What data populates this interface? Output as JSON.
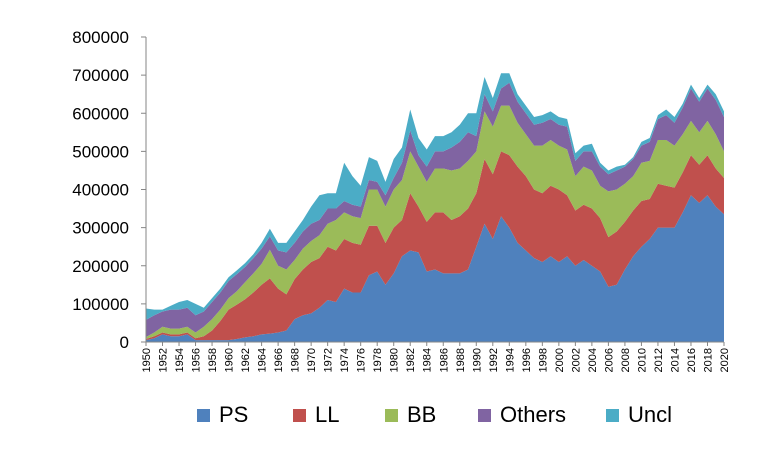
{
  "chart_data": {
    "type": "area",
    "stacked": true,
    "title": "",
    "xlabel": "",
    "ylabel": "",
    "ylim": [
      0,
      800000
    ],
    "yticks": [
      "0",
      "100000",
      "200000",
      "300000",
      "400000",
      "500000",
      "600000",
      "700000",
      "800000"
    ],
    "grid": false,
    "legend_position": "bottom",
    "x": [
      1950,
      1951,
      1952,
      1953,
      1954,
      1955,
      1956,
      1957,
      1958,
      1959,
      1960,
      1961,
      1962,
      1963,
      1964,
      1965,
      1966,
      1967,
      1968,
      1969,
      1970,
      1971,
      1972,
      1973,
      1974,
      1975,
      1976,
      1977,
      1978,
      1979,
      1980,
      1981,
      1982,
      1983,
      1984,
      1985,
      1986,
      1987,
      1988,
      1989,
      1990,
      1991,
      1992,
      1993,
      1994,
      1995,
      1996,
      1997,
      1998,
      1999,
      2000,
      2001,
      2002,
      2003,
      2004,
      2005,
      2006,
      2007,
      2008,
      2009,
      2010,
      2011,
      2012,
      2013,
      2014,
      2015,
      2016,
      2017,
      2018,
      2019,
      2020
    ],
    "xticks": [
      "1950",
      "1952",
      "1954",
      "1956",
      "1958",
      "1960",
      "1962",
      "1964",
      "1966",
      "1968",
      "1970",
      "1972",
      "1974",
      "1976",
      "1978",
      "1980",
      "1982",
      "1984",
      "1986",
      "1988",
      "1990",
      "1992",
      "1994",
      "1996",
      "1998",
      "2000",
      "2002",
      "2004",
      "2006",
      "2008",
      "2010",
      "2012",
      "2014",
      "2016",
      "2018",
      "2020"
    ],
    "series": [
      {
        "name": "PS",
        "color": "#4F81BD",
        "values": [
          5000,
          10000,
          20000,
          15000,
          15000,
          20000,
          5000,
          5000,
          5000,
          5000,
          5000,
          8000,
          12000,
          15000,
          20000,
          22000,
          25000,
          30000,
          60000,
          70000,
          75000,
          90000,
          110000,
          105000,
          140000,
          130000,
          130000,
          175000,
          185000,
          150000,
          180000,
          225000,
          240000,
          235000,
          185000,
          190000,
          180000,
          180000,
          180000,
          190000,
          250000,
          310000,
          270000,
          330000,
          300000,
          260000,
          240000,
          220000,
          210000,
          225000,
          210000,
          225000,
          200000,
          215000,
          200000,
          185000,
          145000,
          150000,
          190000,
          225000,
          250000,
          270000,
          300000,
          300000,
          300000,
          340000,
          385000,
          365000,
          385000,
          355000,
          335000
        ]
      },
      {
        "name": "LL",
        "color": "#C0504D",
        "values": [
          3000,
          5000,
          5000,
          5000,
          5000,
          5000,
          5000,
          10000,
          25000,
          50000,
          80000,
          90000,
          100000,
          115000,
          130000,
          145000,
          115000,
          95000,
          105000,
          120000,
          135000,
          130000,
          140000,
          135000,
          130000,
          130000,
          125000,
          130000,
          120000,
          110000,
          120000,
          95000,
          150000,
          120000,
          130000,
          150000,
          160000,
          140000,
          150000,
          160000,
          140000,
          170000,
          170000,
          170000,
          190000,
          200000,
          195000,
          180000,
          180000,
          185000,
          190000,
          160000,
          145000,
          145000,
          150000,
          140000,
          130000,
          140000,
          125000,
          120000,
          120000,
          105000,
          115000,
          110000,
          105000,
          105000,
          105000,
          100000,
          105000,
          100000,
          95000
        ]
      },
      {
        "name": "BB",
        "color": "#9BBB59",
        "values": [
          5000,
          10000,
          15000,
          15000,
          15000,
          15000,
          15000,
          25000,
          30000,
          30000,
          30000,
          35000,
          45000,
          50000,
          55000,
          75000,
          60000,
          65000,
          50000,
          55000,
          55000,
          60000,
          60000,
          80000,
          70000,
          70000,
          70000,
          95000,
          95000,
          95000,
          100000,
          105000,
          110000,
          105000,
          105000,
          115000,
          115000,
          130000,
          125000,
          125000,
          110000,
          125000,
          125000,
          120000,
          130000,
          115000,
          110000,
          115000,
          125000,
          120000,
          115000,
          120000,
          90000,
          100000,
          100000,
          85000,
          120000,
          110000,
          100000,
          90000,
          100000,
          100000,
          115000,
          120000,
          110000,
          100000,
          90000,
          85000,
          90000,
          90000,
          70000
        ]
      },
      {
        "name": "Others",
        "color": "#8064A2",
        "values": [
          45000,
          45000,
          40000,
          50000,
          50000,
          50000,
          45000,
          40000,
          45000,
          45000,
          45000,
          45000,
          40000,
          40000,
          40000,
          35000,
          40000,
          45000,
          45000,
          45000,
          45000,
          40000,
          40000,
          30000,
          30000,
          30000,
          30000,
          25000,
          20000,
          30000,
          30000,
          45000,
          55000,
          30000,
          40000,
          45000,
          45000,
          60000,
          70000,
          75000,
          40000,
          45000,
          40000,
          45000,
          60000,
          55000,
          55000,
          55000,
          60000,
          55000,
          55000,
          60000,
          40000,
          40000,
          50000,
          50000,
          45000,
          50000,
          45000,
          45000,
          45000,
          50000,
          55000,
          65000,
          60000,
          70000,
          85000,
          80000,
          85000,
          90000,
          90000
        ]
      },
      {
        "name": "Uncl",
        "color": "#4BACC6",
        "values": [
          30000,
          15000,
          5000,
          10000,
          20000,
          20000,
          30000,
          10000,
          10000,
          10000,
          10000,
          10000,
          10000,
          10000,
          15000,
          20000,
          20000,
          25000,
          30000,
          30000,
          45000,
          65000,
          40000,
          40000,
          100000,
          75000,
          55000,
          60000,
          55000,
          35000,
          50000,
          40000,
          55000,
          45000,
          45000,
          40000,
          40000,
          40000,
          45000,
          50000,
          60000,
          45000,
          35000,
          40000,
          25000,
          20000,
          20000,
          20000,
          20000,
          20000,
          20000,
          20000,
          20000,
          15000,
          20000,
          10000,
          10000,
          10000,
          5000,
          5000,
          10000,
          10000,
          10000,
          15000,
          15000,
          10000,
          10000,
          10000,
          10000,
          15000,
          15000
        ]
      }
    ]
  }
}
